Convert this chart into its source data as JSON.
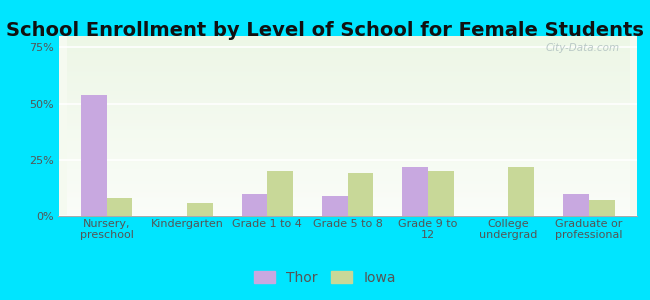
{
  "title": "School Enrollment by Level of School for Female Students",
  "categories": [
    "Nursery,\npreschool",
    "Kindergarten",
    "Grade 1 to 4",
    "Grade 5 to 8",
    "Grade 9 to\n12",
    "College\nundergrad",
    "Graduate or\nprofessional"
  ],
  "thor_values": [
    54.0,
    0.0,
    10.0,
    9.0,
    22.0,
    0.0,
    10.0
  ],
  "iowa_values": [
    8.0,
    6.0,
    20.0,
    19.0,
    20.0,
    22.0,
    7.0
  ],
  "thor_color": "#c8a8e0",
  "iowa_color": "#c8d898",
  "background_outer": "#00e5ff",
  "background_plot": "#f5faf0",
  "ylabel_ticks": [
    "0%",
    "25%",
    "50%",
    "75%"
  ],
  "ytick_values": [
    0,
    25,
    50,
    75
  ],
  "ylim": [
    0,
    80
  ],
  "title_fontsize": 14,
  "tick_fontsize": 8,
  "legend_fontsize": 10,
  "bar_width": 0.32,
  "watermark": "City-Data.com"
}
